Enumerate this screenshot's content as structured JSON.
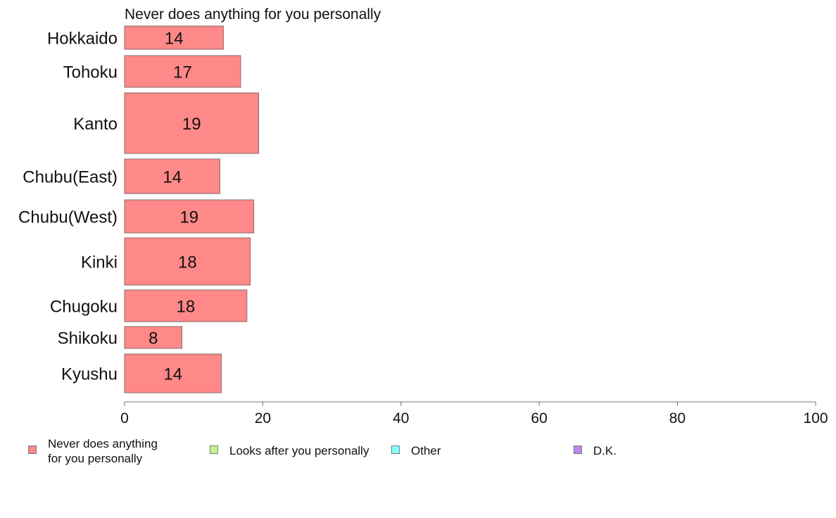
{
  "chart_data": {
    "type": "bar",
    "orientation": "horizontal",
    "title": "Never does anything for you personally",
    "categories": [
      "Hokkaido",
      "Tohoku",
      "Kanto",
      "Chubu(East)",
      "Chubu(West)",
      "Kinki",
      "Chugoku",
      "Shikoku",
      "Kyushu"
    ],
    "values": [
      14.3,
      16.8,
      19.4,
      13.8,
      18.7,
      18.2,
      17.7,
      8.3,
      14.0
    ],
    "value_labels": [
      "14",
      "17",
      "19",
      "14",
      "19",
      "18",
      "18",
      "8",
      "14"
    ],
    "xlim": [
      0,
      100
    ],
    "xticks": [
      "0",
      "20",
      "40",
      "60",
      "80",
      "100"
    ],
    "xlabel": "",
    "ylabel": "",
    "grid": false,
    "bar_color": "#ff8888",
    "legend": {
      "placement": "bottom",
      "entries": [
        {
          "label": "Never does anything\nfor you personally",
          "color": "#ff8888"
        },
        {
          "label": "Looks after you personally",
          "color": "#c8f58c"
        },
        {
          "label": "Other",
          "color": "#88ffff"
        },
        {
          "label": "D.K.",
          "color": "#bb88ee"
        }
      ]
    }
  }
}
